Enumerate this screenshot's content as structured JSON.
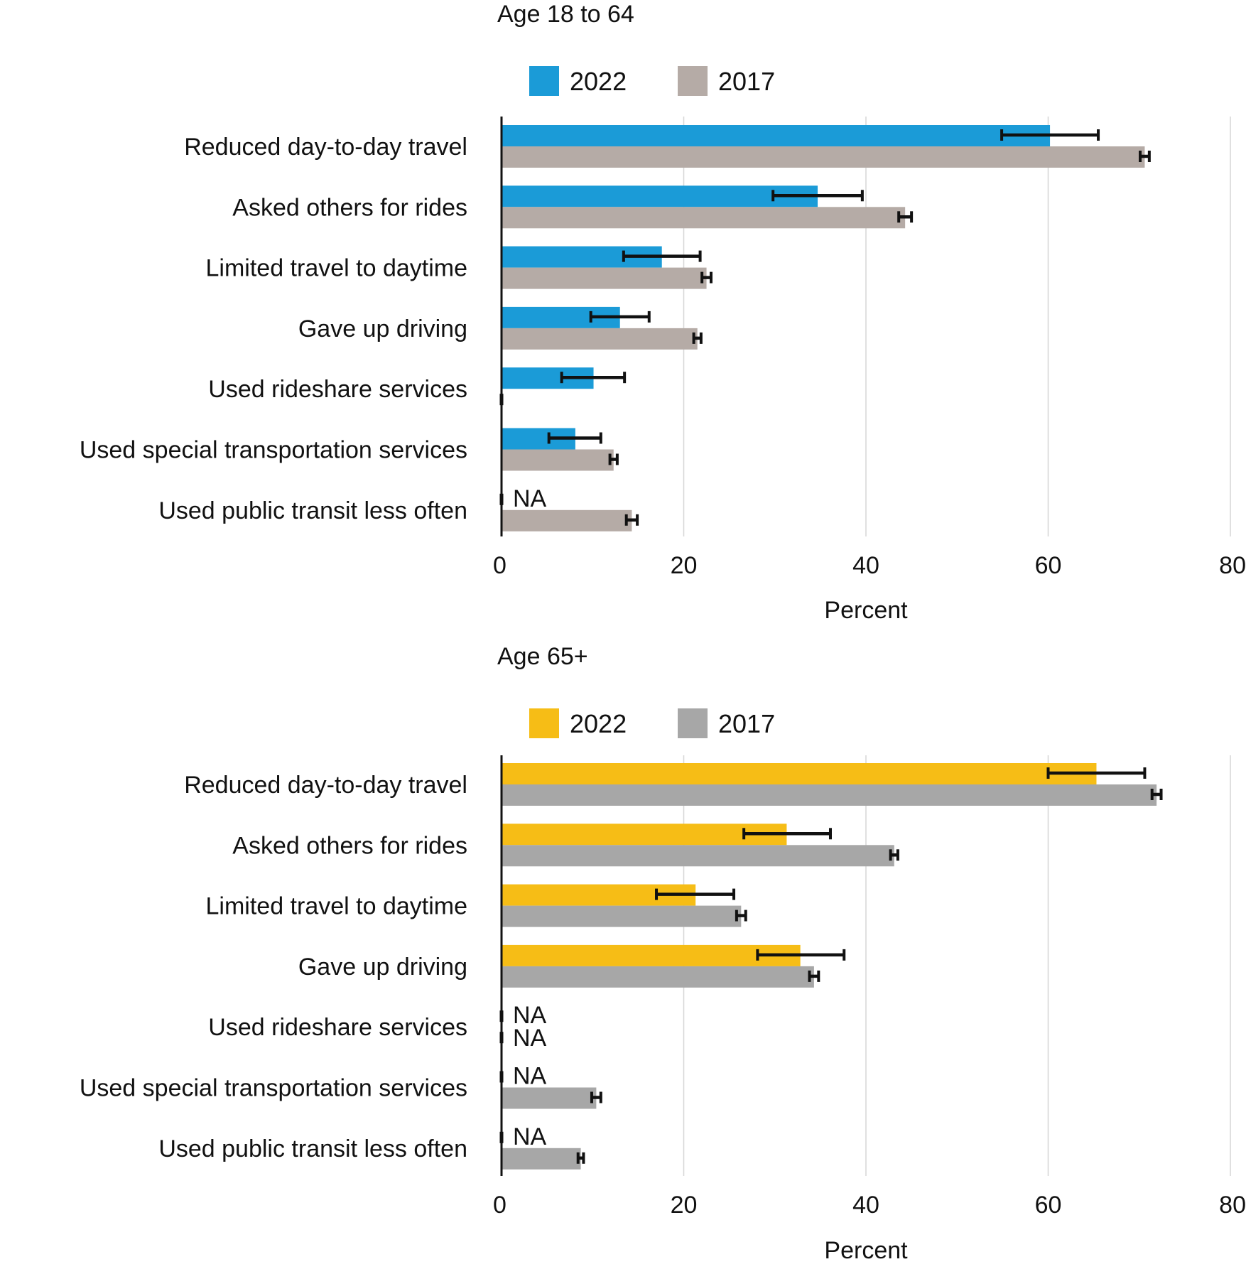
{
  "chart_data": [
    {
      "type": "bar",
      "orientation": "horizontal",
      "title": "Age 18 to 64",
      "xlabel": "Percent",
      "ylabel": "",
      "xlim": [
        0,
        80
      ],
      "ticks": [
        0,
        20,
        40,
        60,
        80
      ],
      "tick_labels": [
        "0",
        "20",
        "40",
        "60",
        "80"
      ],
      "grid": true,
      "legend_position": "top",
      "na_label": "NA",
      "categories": [
        "Reduced day-to-day travel",
        "Asked others for rides",
        "Limited travel to daytime",
        "Gave up driving",
        "Used rideshare services",
        "Used special transportation services",
        "Used public transit less often"
      ],
      "series": [
        {
          "name": "2022",
          "color": "#1b9bd7",
          "values": [
            60.2,
            34.7,
            17.6,
            13.0,
            10.1,
            8.1,
            null
          ],
          "error_low": [
            54.9,
            29.8,
            13.4,
            9.8,
            6.6,
            5.2,
            null
          ],
          "error_high": [
            65.5,
            39.6,
            21.8,
            16.2,
            13.5,
            10.9,
            null
          ]
        },
        {
          "name": "2017",
          "color": "#b5aba6",
          "values": [
            70.6,
            44.3,
            22.5,
            21.5,
            null,
            12.3,
            14.3
          ],
          "error_low": [
            70.1,
            43.6,
            22.0,
            21.1,
            null,
            11.9,
            13.7
          ],
          "error_high": [
            71.1,
            45.0,
            23.0,
            21.9,
            null,
            12.7,
            14.9
          ]
        }
      ]
    },
    {
      "type": "bar",
      "orientation": "horizontal",
      "title": "Age 65+",
      "xlabel": "Percent",
      "ylabel": "",
      "xlim": [
        0,
        80
      ],
      "ticks": [
        0,
        20,
        40,
        60,
        80
      ],
      "tick_labels": [
        "0",
        "20",
        "40",
        "60",
        "80"
      ],
      "grid": true,
      "legend_position": "top",
      "na_label": "NA",
      "categories": [
        "Reduced day-to-day travel",
        "Asked others for rides",
        "Limited travel to daytime",
        "Gave up driving",
        "Used rideshare services",
        "Used special transportation services",
        "Used public transit less often"
      ],
      "series": [
        {
          "name": "2022",
          "color": "#f6bd16",
          "values": [
            65.3,
            31.3,
            21.3,
            32.8,
            null,
            null,
            null
          ],
          "error_low": [
            60.0,
            26.6,
            17.0,
            28.1,
            null,
            null,
            null
          ],
          "error_high": [
            70.6,
            36.1,
            25.5,
            37.6,
            null,
            null,
            null
          ]
        },
        {
          "name": "2017",
          "color": "#a7a7a7",
          "values": [
            71.9,
            43.1,
            26.3,
            34.3,
            null,
            10.4,
            8.7
          ],
          "error_low": [
            71.4,
            42.7,
            25.8,
            33.8,
            null,
            9.9,
            8.4
          ],
          "error_high": [
            72.4,
            43.5,
            26.8,
            34.8,
            null,
            10.9,
            9.0
          ]
        }
      ]
    }
  ]
}
